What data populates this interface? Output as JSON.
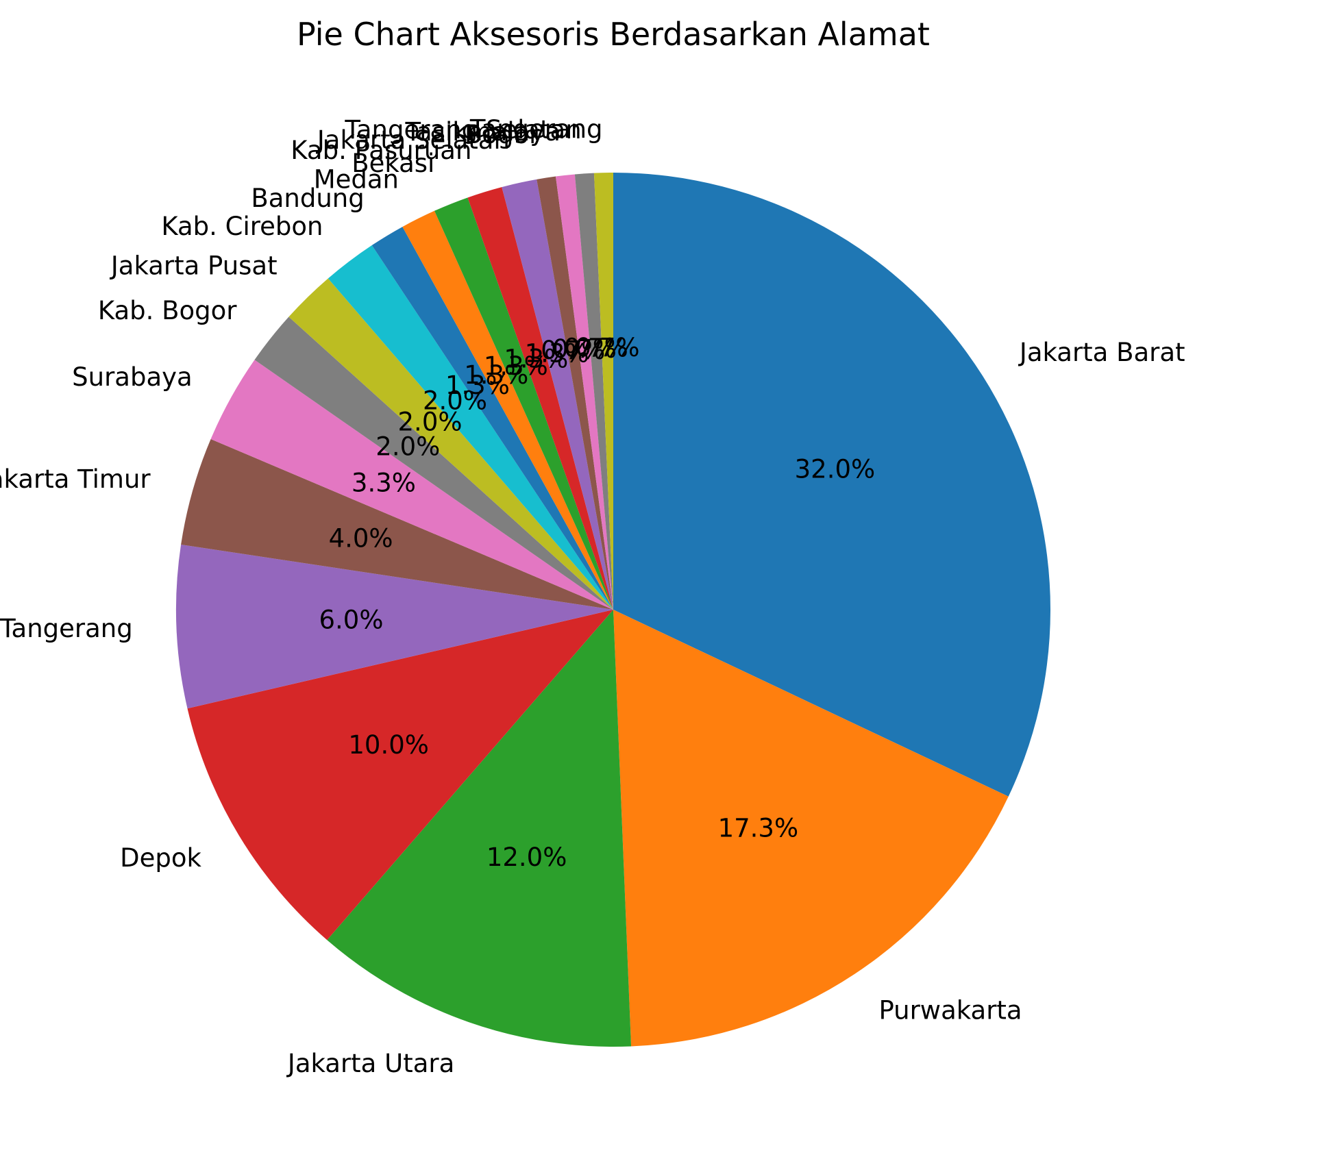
{
  "chart_data": {
    "type": "pie",
    "title": "Pie Chart Aksesoris Berdasarkan Alamat",
    "start_angle_deg": 90,
    "direction": "clockwise",
    "slices": [
      {
        "label": "Jakarta Barat",
        "value": 32.0,
        "pct_label": "32.0%",
        "color": "#1f77b4"
      },
      {
        "label": "Purwakarta",
        "value": 17.3,
        "pct_label": "17.3%",
        "color": "#ff7f0e"
      },
      {
        "label": "Jakarta Utara",
        "value": 12.0,
        "pct_label": "12.0%",
        "color": "#2ca02c"
      },
      {
        "label": "Depok",
        "value": 10.0,
        "pct_label": "10.0%",
        "color": "#d62728"
      },
      {
        "label": "Kab. Tangerang",
        "value": 6.0,
        "pct_label": "6.0%",
        "color": "#9467bd"
      },
      {
        "label": "Jakarta Timur",
        "value": 4.0,
        "pct_label": "4.0%",
        "color": "#8c564b"
      },
      {
        "label": "Surabaya",
        "value": 3.3,
        "pct_label": "3.3%",
        "color": "#e377c2"
      },
      {
        "label": "Kab. Bogor",
        "value": 2.0,
        "pct_label": "2.0%",
        "color": "#7f7f7f"
      },
      {
        "label": "Jakarta Pusat",
        "value": 2.0,
        "pct_label": "2.0%",
        "color": "#bcbd22"
      },
      {
        "label": "Kab. Cirebon",
        "value": 2.0,
        "pct_label": "2.0%",
        "color": "#17becf"
      },
      {
        "label": "Bandung",
        "value": 1.3,
        "pct_label": "1.3%",
        "color": "#1f77b4"
      },
      {
        "label": "Medan",
        "value": 1.3,
        "pct_label": "1.3%",
        "color": "#ff7f0e"
      },
      {
        "label": "Bekasi",
        "value": 1.3,
        "pct_label": "1.3%",
        "color": "#2ca02c"
      },
      {
        "label": "Kab. Pasuruan",
        "value": 1.3,
        "pct_label": "1.3%",
        "color": "#d62728"
      },
      {
        "label": "Jakarta Selatan",
        "value": 1.3,
        "pct_label": "1.3%",
        "color": "#9467bd"
      },
      {
        "label": "Bogor",
        "value": 0.7,
        "pct_label": "0.7%",
        "color": "#8c564b"
      },
      {
        "label": "Tasikmalaya",
        "value": 0.7,
        "pct_label": "0.7%",
        "color": "#e377c2"
      },
      {
        "label": "Tangerang Selatan",
        "value": 0.7,
        "pct_label": "0.7%",
        "color": "#7f7f7f"
      },
      {
        "label": "Tangerang",
        "value": 0.7,
        "pct_label": "0.7%",
        "color": "#bcbd22"
      }
    ]
  }
}
